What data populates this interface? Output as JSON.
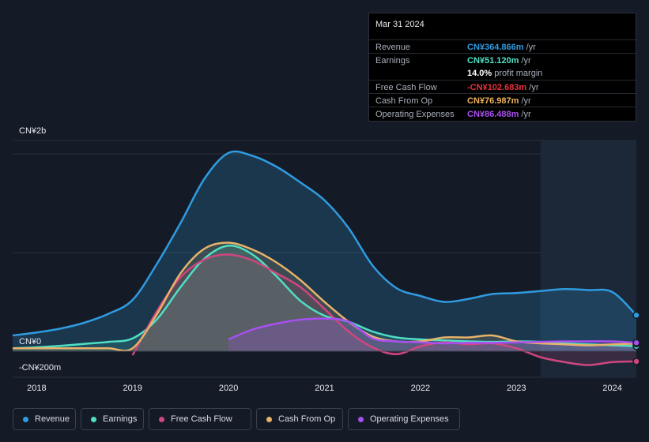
{
  "tooltip": {
    "date": "Mar 31 2024",
    "rows": [
      {
        "label": "Revenue",
        "value": "CN¥364.866m",
        "unit": " /yr",
        "color": "#2f9be0"
      },
      {
        "label": "Earnings",
        "value": "CN¥51.120m",
        "unit": " /yr",
        "color": "#4fe0c4"
      },
      {
        "label": "",
        "value": "14.0%",
        "unit": " profit margin",
        "color": "#ffffff"
      },
      {
        "label": "Free Cash Flow",
        "value": "-CN¥102.683m",
        "unit": " /yr",
        "color": "#e8323c"
      },
      {
        "label": "Cash From Op",
        "value": "CN¥76.987m",
        "unit": " /yr",
        "color": "#f0b35c"
      },
      {
        "label": "Operating Expenses",
        "value": "CN¥86.488m",
        "unit": " /yr",
        "color": "#a94ff0"
      }
    ]
  },
  "legend": [
    {
      "label": "Revenue",
      "color": "#2f9be0"
    },
    {
      "label": "Earnings",
      "color": "#4fe0c4"
    },
    {
      "label": "Free Cash Flow",
      "color": "#d0467f"
    },
    {
      "label": "Cash From Op",
      "color": "#e8b26a"
    },
    {
      "label": "Operating Expenses",
      "color": "#a94ff0"
    }
  ],
  "chart_data": {
    "type": "area",
    "title": "",
    "xlabel": "",
    "ylabel": "",
    "y_axis_labels": [
      "CN¥2b",
      "CN¥0",
      "-CN¥200m"
    ],
    "ylim": [
      -200,
      2000
    ],
    "unit": "CN¥m",
    "x_tick_labels": [
      "2018",
      "2019",
      "2020",
      "2021",
      "2022",
      "2023",
      "2024"
    ],
    "x_ticks": [
      2018,
      2019,
      2020,
      2021,
      2022,
      2023,
      2024
    ],
    "xlim": [
      2017.75,
      2024.25
    ],
    "highlight_start": 2023.25,
    "series": [
      {
        "name": "Revenue",
        "color": "#2f9be0",
        "x": [
          2017.75,
          2018.0,
          2018.25,
          2018.5,
          2018.75,
          2019.0,
          2019.25,
          2019.5,
          2019.75,
          2020.0,
          2020.25,
          2020.5,
          2020.75,
          2021.0,
          2021.25,
          2021.5,
          2021.75,
          2022.0,
          2022.25,
          2022.5,
          2022.75,
          2023.0,
          2023.25,
          2023.5,
          2023.75,
          2024.0,
          2024.25
        ],
        "values": [
          160,
          190,
          230,
          290,
          380,
          520,
          880,
          1300,
          1750,
          2010,
          1980,
          1870,
          1710,
          1530,
          1250,
          870,
          640,
          560,
          500,
          530,
          580,
          590,
          610,
          630,
          620,
          600,
          365
        ]
      },
      {
        "name": "Earnings",
        "color": "#4fe0c4",
        "x": [
          2017.75,
          2018.0,
          2018.25,
          2018.5,
          2018.75,
          2019.0,
          2019.25,
          2019.5,
          2019.75,
          2020.0,
          2020.25,
          2020.5,
          2020.75,
          2021.0,
          2021.25,
          2021.5,
          2021.75,
          2022.0,
          2022.25,
          2022.5,
          2022.75,
          2023.0,
          2023.25,
          2023.5,
          2023.75,
          2024.0,
          2024.25
        ],
        "values": [
          30,
          40,
          55,
          75,
          95,
          130,
          320,
          650,
          940,
          1070,
          980,
          760,
          510,
          360,
          300,
          200,
          140,
          120,
          110,
          100,
          95,
          100,
          95,
          80,
          70,
          60,
          51
        ]
      },
      {
        "name": "Free Cash Flow",
        "color": "#d0467f",
        "x": [
          2019.0,
          2019.25,
          2019.5,
          2019.75,
          2020.0,
          2020.25,
          2020.5,
          2020.75,
          2021.0,
          2021.25,
          2021.5,
          2021.75,
          2022.0,
          2022.25,
          2022.5,
          2022.75,
          2023.0,
          2023.25,
          2023.5,
          2023.75,
          2024.0,
          2024.25
        ],
        "values": [
          -40,
          400,
          750,
          930,
          980,
          920,
          790,
          650,
          430,
          200,
          40,
          -30,
          50,
          90,
          70,
          80,
          30,
          -60,
          -110,
          -140,
          -110,
          -103
        ]
      },
      {
        "name": "Cash From Op",
        "color": "#e8b26a",
        "x": [
          2017.75,
          2018.0,
          2018.25,
          2018.5,
          2018.75,
          2019.0,
          2019.25,
          2019.5,
          2019.75,
          2020.0,
          2020.25,
          2020.5,
          2020.75,
          2021.0,
          2021.25,
          2021.5,
          2021.75,
          2022.0,
          2022.25,
          2022.5,
          2022.75,
          2023.0,
          2023.25,
          2023.5,
          2023.75,
          2024.0,
          2024.25
        ],
        "values": [
          30,
          30,
          30,
          30,
          30,
          30,
          370,
          790,
          1040,
          1100,
          1030,
          900,
          720,
          500,
          300,
          150,
          100,
          100,
          140,
          140,
          160,
          100,
          80,
          70,
          60,
          70,
          77
        ]
      },
      {
        "name": "Operating Expenses",
        "color": "#a94ff0",
        "x": [
          2020.0,
          2020.25,
          2020.5,
          2020.75,
          2021.0,
          2021.25,
          2021.5,
          2021.75,
          2022.0,
          2022.25,
          2022.5,
          2022.75,
          2023.0,
          2023.25,
          2023.5,
          2023.75,
          2024.0,
          2024.25
        ],
        "values": [
          120,
          220,
          280,
          320,
          330,
          300,
          130,
          100,
          90,
          80,
          85,
          85,
          90,
          95,
          100,
          100,
          100,
          86
        ]
      }
    ]
  }
}
